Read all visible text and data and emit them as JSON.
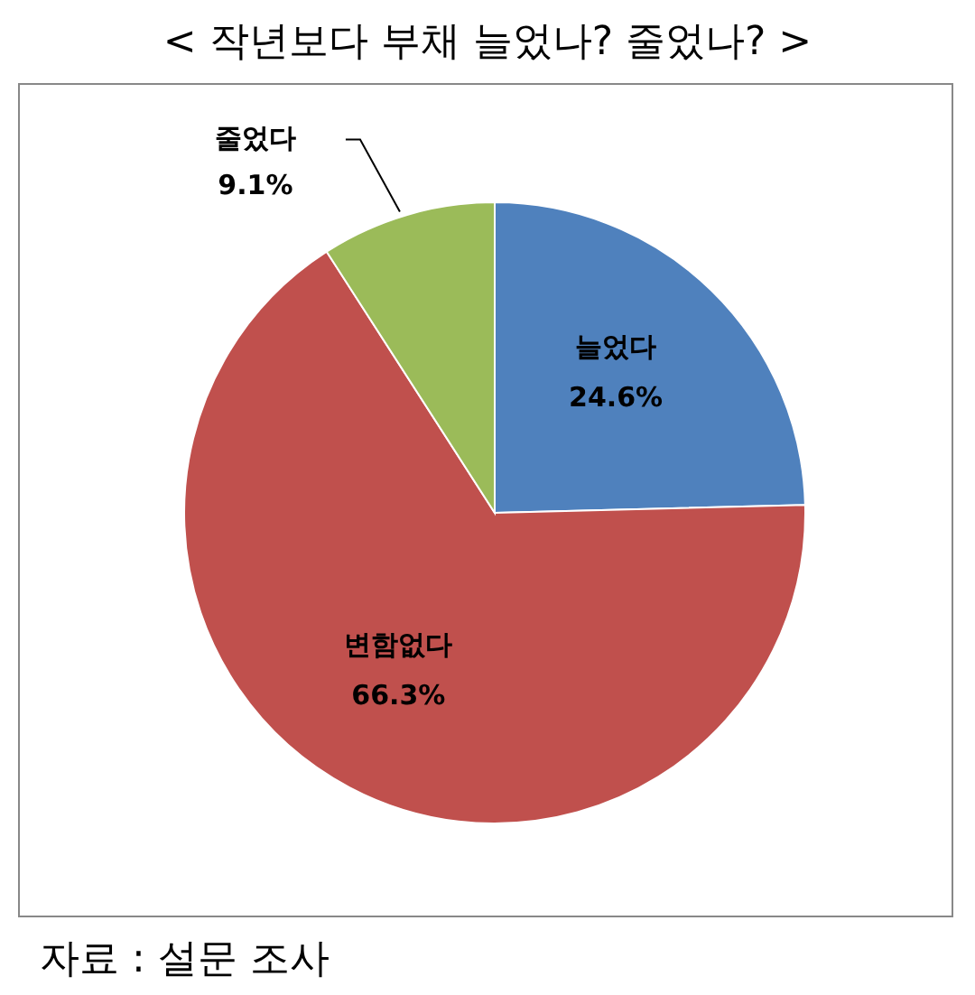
{
  "chart_data": {
    "type": "pie",
    "title": "< 작년보다 부채 늘었나? 줄었나? >",
    "categories": [
      "늘었다",
      "변함없다",
      "줄었다"
    ],
    "values": [
      24.6,
      66.3,
      9.1
    ],
    "colors": [
      "#4f81bd",
      "#c0504d",
      "#9bbb59"
    ],
    "value_labels": [
      "24.6%",
      "66.3%",
      "9.1%"
    ],
    "annotations": [
      "자료 : 설문 조사"
    ]
  }
}
